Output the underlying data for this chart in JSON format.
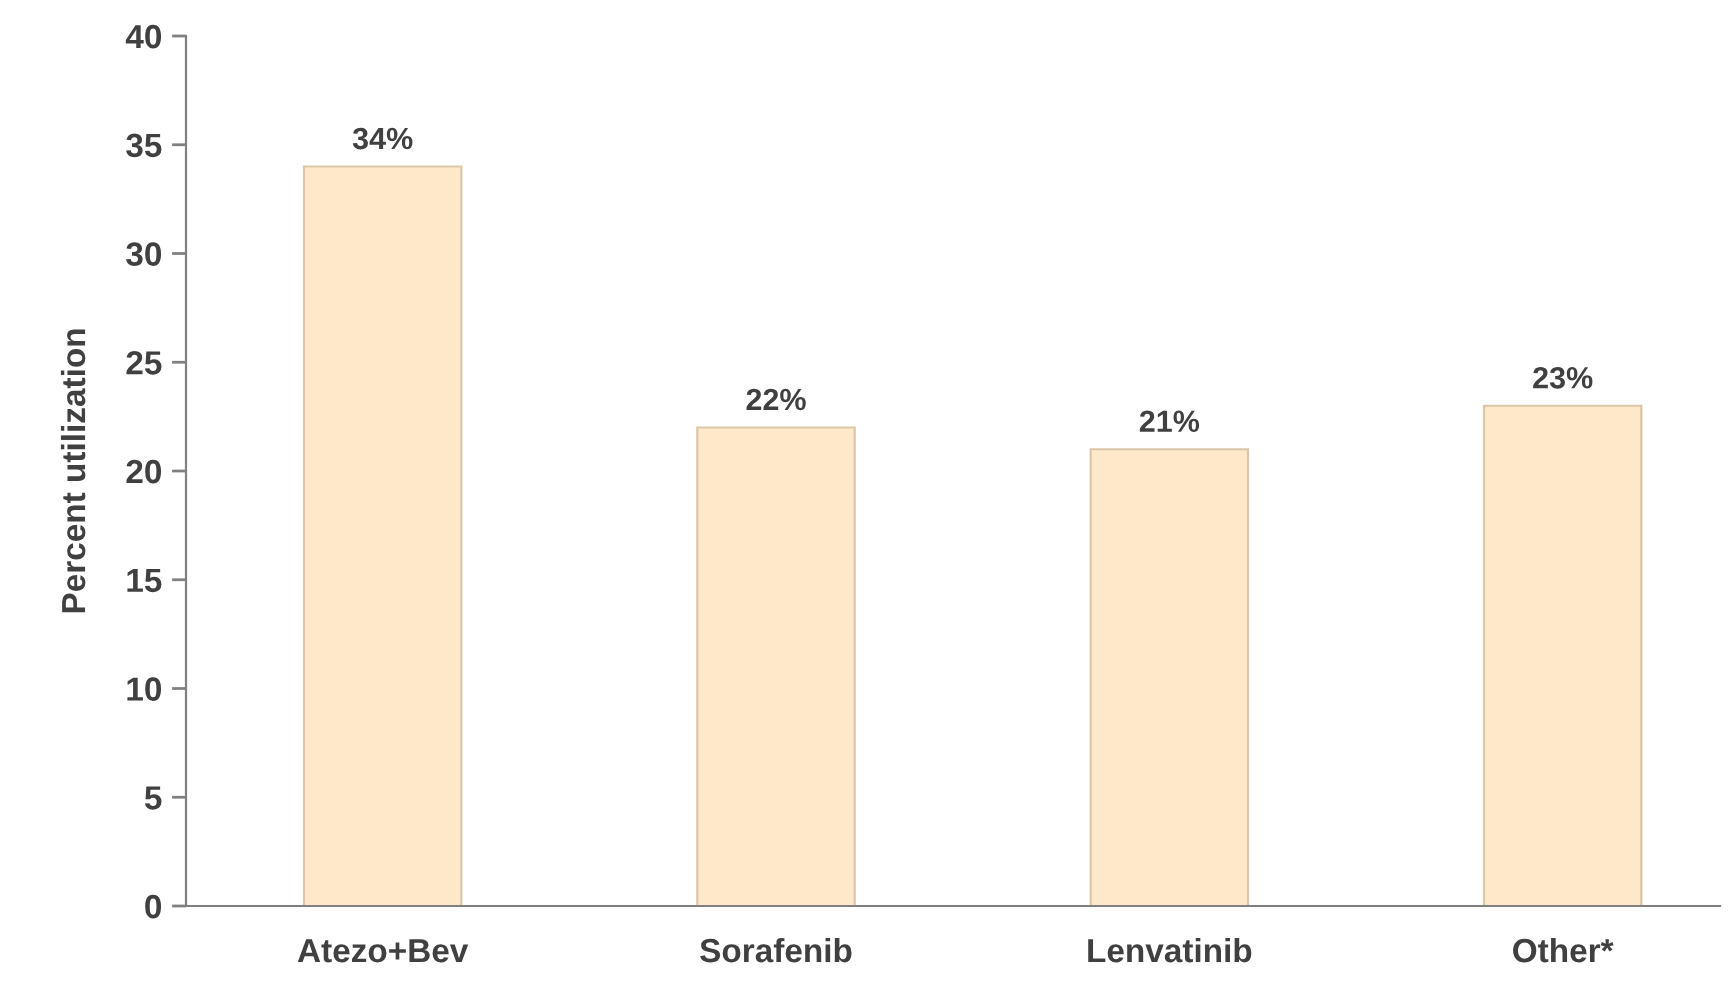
{
  "chart_data": {
    "type": "bar",
    "ylabel": "Percent utilization",
    "categories": [
      "Atezo+Bev",
      "Sorafenib",
      "Lenvatinib",
      "Other*"
    ],
    "values": [
      34,
      22,
      21,
      23
    ],
    "color": "#fde9c9",
    "value_labels": [
      "34%",
      "22%",
      "21%",
      "23%"
    ],
    "ylim": [
      0,
      40
    ],
    "yticks": [
      0,
      5,
      10,
      15,
      20,
      25,
      30,
      35,
      40
    ],
    "grid": false,
    "legend": false
  }
}
